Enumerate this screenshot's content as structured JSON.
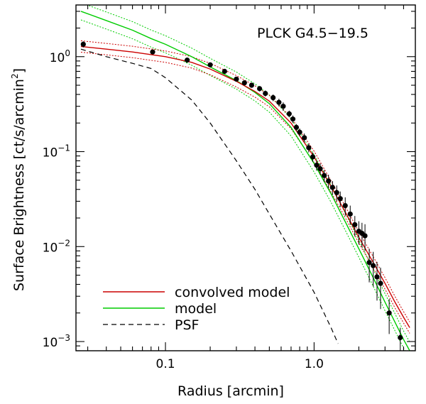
{
  "chart_data": {
    "type": "line",
    "title": "",
    "annotation": "PLCK G4.5−19.5",
    "xlabel": "Radius [arcmin]",
    "ylabel_main": "Surface Brightness [ct/s/arcmin",
    "ylabel_sup": "2",
    "ylabel_end": "]",
    "xscale": "log",
    "yscale": "log",
    "xlim": [
      0.025,
      4.8
    ],
    "ylim": [
      0.0008,
      3.5
    ],
    "x_ticks": [
      {
        "value": 0.1,
        "label": "0.1"
      },
      {
        "value": 1.0,
        "label": "1.0"
      }
    ],
    "y_ticks": [
      {
        "value": 0.001,
        "base": "10",
        "exp": "−3"
      },
      {
        "value": 0.01,
        "base": "10",
        "exp": "−2"
      },
      {
        "value": 0.1,
        "base": "10",
        "exp": "−1"
      },
      {
        "value": 1.0,
        "base": "10",
        "exp": "0"
      }
    ],
    "colors": {
      "convolved": "#cc0000",
      "model": "#00cc00",
      "psf": "#000000",
      "points": "#000000"
    },
    "legend": [
      {
        "label": "convolved model",
        "style": "solid",
        "color": "#cc0000"
      },
      {
        "label": "model",
        "style": "solid",
        "color": "#00cc00"
      },
      {
        "label": "PSF",
        "style": "dashed",
        "color": "#000000"
      }
    ],
    "series": [
      {
        "name": "model",
        "x": [
          0.027,
          0.04,
          0.06,
          0.08,
          0.1,
          0.15,
          0.2,
          0.3,
          0.4,
          0.5,
          0.7,
          1.0,
          1.3,
          1.6,
          2.0,
          2.5,
          3.0,
          3.5,
          4.0,
          4.4
        ],
        "y": [
          3.0,
          2.4,
          1.9,
          1.55,
          1.35,
          1.0,
          0.78,
          0.56,
          0.42,
          0.32,
          0.18,
          0.075,
          0.036,
          0.019,
          0.0095,
          0.0047,
          0.0026,
          0.0016,
          0.00105,
          0.0008
        ],
        "band": 0.09
      },
      {
        "name": "convolved model",
        "x": [
          0.027,
          0.04,
          0.06,
          0.08,
          0.1,
          0.15,
          0.2,
          0.3,
          0.4,
          0.5,
          0.7,
          1.0,
          1.3,
          1.6,
          2.0,
          2.5,
          3.0,
          3.5,
          4.0,
          4.4
        ],
        "y": [
          1.28,
          1.2,
          1.12,
          1.05,
          1.0,
          0.87,
          0.74,
          0.55,
          0.43,
          0.34,
          0.2,
          0.088,
          0.043,
          0.024,
          0.0125,
          0.0068,
          0.0041,
          0.0026,
          0.0018,
          0.0014
        ],
        "band": 0.06
      },
      {
        "name": "PSF",
        "x": [
          0.027,
          0.04,
          0.06,
          0.08,
          0.1,
          0.15,
          0.2,
          0.3,
          0.4,
          0.5,
          0.7,
          1.0,
          1.3,
          1.45
        ],
        "y": [
          1.2,
          1.0,
          0.85,
          0.75,
          0.6,
          0.35,
          0.2,
          0.08,
          0.04,
          0.022,
          0.009,
          0.0033,
          0.0014,
          0.00095
        ]
      }
    ],
    "data_points": {
      "x": [
        0.028,
        0.082,
        0.14,
        0.2,
        0.25,
        0.3,
        0.34,
        0.38,
        0.43,
        0.47,
        0.53,
        0.58,
        0.62,
        0.68,
        0.72,
        0.76,
        0.8,
        0.86,
        0.92,
        0.98,
        1.04,
        1.1,
        1.17,
        1.25,
        1.33,
        1.42,
        1.5,
        1.62,
        1.75,
        1.88,
        2.0,
        2.1,
        2.2,
        2.35,
        2.5,
        2.65,
        2.8,
        3.2,
        3.8
      ],
      "y": [
        1.35,
        1.12,
        0.92,
        0.82,
        0.7,
        0.58,
        0.53,
        0.5,
        0.46,
        0.41,
        0.37,
        0.33,
        0.3,
        0.25,
        0.22,
        0.18,
        0.16,
        0.14,
        0.11,
        0.088,
        0.072,
        0.066,
        0.056,
        0.049,
        0.042,
        0.037,
        0.032,
        0.027,
        0.022,
        0.017,
        0.0145,
        0.0138,
        0.013,
        0.0068,
        0.0063,
        0.0048,
        0.0041,
        0.002,
        0.0011
      ],
      "err_lo": [
        1.25,
        1.06,
        0.87,
        0.78,
        0.67,
        0.55,
        0.5,
        0.47,
        0.43,
        0.38,
        0.34,
        0.3,
        0.27,
        0.23,
        0.2,
        0.165,
        0.145,
        0.125,
        0.098,
        0.078,
        0.063,
        0.057,
        0.048,
        0.041,
        0.035,
        0.03,
        0.026,
        0.021,
        0.017,
        0.0128,
        0.0105,
        0.0098,
        0.009,
        0.0042,
        0.0038,
        0.0027,
        0.0022,
        0.0012,
        0.0008
      ],
      "err_hi": [
        1.45,
        1.18,
        0.97,
        0.86,
        0.73,
        0.61,
        0.56,
        0.53,
        0.49,
        0.44,
        0.4,
        0.36,
        0.33,
        0.27,
        0.24,
        0.195,
        0.175,
        0.155,
        0.122,
        0.098,
        0.081,
        0.075,
        0.064,
        0.057,
        0.049,
        0.044,
        0.038,
        0.033,
        0.027,
        0.021,
        0.0185,
        0.0178,
        0.0172,
        0.0095,
        0.0088,
        0.0069,
        0.006,
        0.0028,
        0.0014
      ]
    }
  }
}
